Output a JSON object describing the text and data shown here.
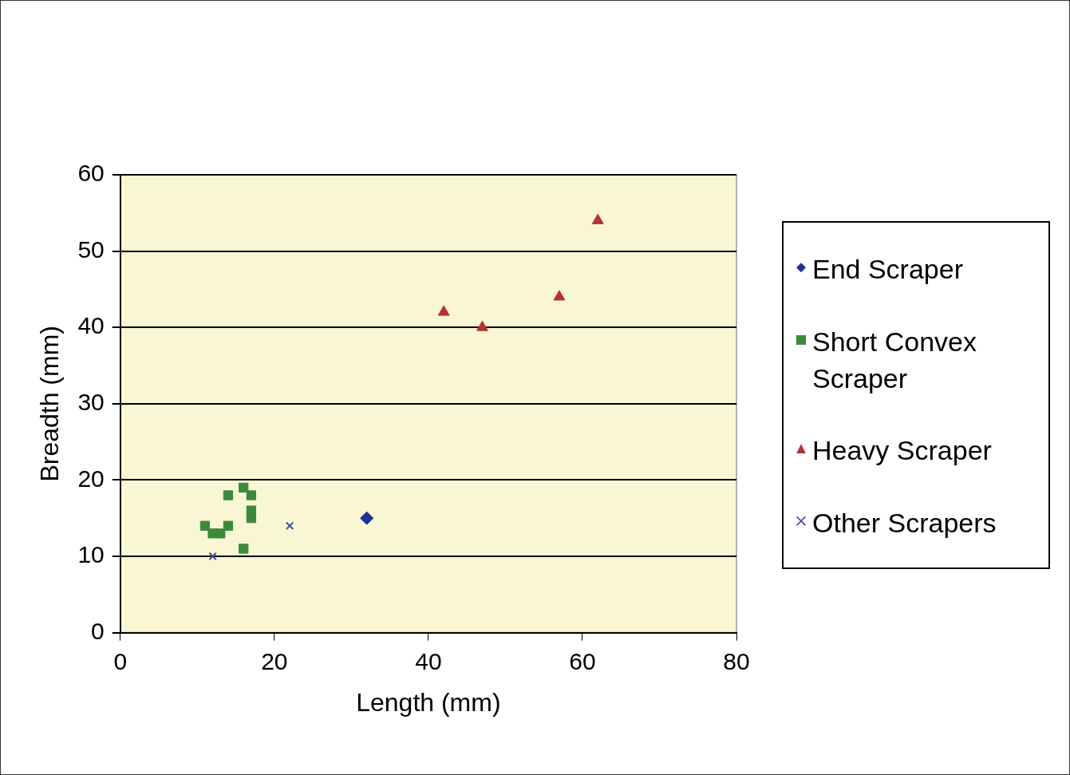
{
  "chart_data": {
    "type": "scatter",
    "xlabel": "Length (mm)",
    "ylabel": "Breadth (mm)",
    "xlim": [
      0,
      80
    ],
    "xticks": [
      0,
      20,
      40,
      60,
      80
    ],
    "ylim": [
      0,
      60
    ],
    "yticks": [
      0,
      10,
      20,
      30,
      40,
      50,
      60
    ],
    "grid": "y",
    "legend": "right",
    "series": [
      {
        "name": "End Scraper",
        "color": "#1f2f96",
        "marker": "diamond",
        "x": [
          32
        ],
        "values": [
          15
        ]
      },
      {
        "name": "Short Convex Scraper",
        "color": "#3b8a3b",
        "marker": "square",
        "x": [
          16,
          14,
          17,
          17,
          17,
          11,
          14,
          12,
          13,
          16
        ],
        "values": [
          19,
          18,
          18,
          16,
          15,
          14,
          14,
          13,
          13,
          11
        ]
      },
      {
        "name": "Heavy Scraper",
        "color": "#b83030",
        "marker": "triangle",
        "x": [
          42,
          47,
          57,
          62
        ],
        "values": [
          42,
          40,
          44,
          54
        ]
      },
      {
        "name": "Other Scrapers",
        "color": "#4050a8",
        "marker": "cross",
        "x": [
          12,
          22
        ],
        "values": [
          10,
          14
        ]
      }
    ]
  }
}
